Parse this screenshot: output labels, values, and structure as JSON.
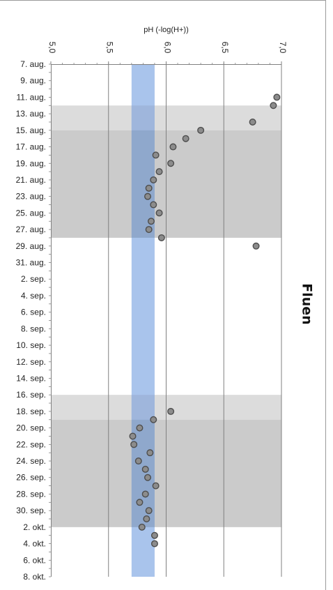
{
  "chart_data": {
    "type": "scatter",
    "title": "Fluen",
    "ylabel": "pH (-log(H+))",
    "value_range": [
      5.0,
      7.0
    ],
    "value_ticks": [
      "5,0",
      "5,5",
      "6,0",
      "6,5",
      "7,0"
    ],
    "date_labels": [
      "7. aug.",
      "9. aug.",
      "11. aug.",
      "13. aug.",
      "15. aug.",
      "17. aug.",
      "19. aug.",
      "21. aug.",
      "23. aug.",
      "25. aug.",
      "27. aug.",
      "29. aug.",
      "31. aug.",
      "2. sep.",
      "4. sep.",
      "6. sep.",
      "8. sep.",
      "10. sep.",
      "12. sep.",
      "14. sep.",
      "16. sep.",
      "18. sep.",
      "20. sep.",
      "22. sep.",
      "24. sep.",
      "26. sep.",
      "28. sep.",
      "30. sep.",
      "2. okt.",
      "4. okt.",
      "6. okt.",
      "8. okt."
    ],
    "date_range": [
      "2014-08-07",
      "2014-10-08"
    ],
    "target_band": [
      5.7,
      5.9
    ],
    "shaded_periods": [
      {
        "from": "2014-08-12",
        "to": "2014-08-15",
        "shade": "light"
      },
      {
        "from": "2014-08-15",
        "to": "2014-08-28",
        "shade": "dark"
      },
      {
        "from": "2014-09-16",
        "to": "2014-09-19",
        "shade": "light"
      },
      {
        "from": "2014-09-19",
        "to": "2014-10-02",
        "shade": "dark"
      }
    ],
    "series": [
      {
        "points": [
          {
            "date": "2014-08-11",
            "value": 6.96
          },
          {
            "date": "2014-08-12",
            "value": 6.93
          },
          {
            "date": "2014-08-14",
            "value": 6.75
          },
          {
            "date": "2014-08-15",
            "value": 6.3
          },
          {
            "date": "2014-08-16",
            "value": 6.17
          },
          {
            "date": "2014-08-17",
            "value": 6.06
          },
          {
            "date": "2014-08-18",
            "value": 5.91
          },
          {
            "date": "2014-08-19",
            "value": 6.04
          },
          {
            "date": "2014-08-20",
            "value": 5.94
          },
          {
            "date": "2014-08-21",
            "value": 5.89
          },
          {
            "date": "2014-08-22",
            "value": 5.85
          },
          {
            "date": "2014-08-23",
            "value": 5.84
          },
          {
            "date": "2014-08-24",
            "value": 5.89
          },
          {
            "date": "2014-08-25",
            "value": 5.94
          },
          {
            "date": "2014-08-26",
            "value": 5.87
          },
          {
            "date": "2014-08-27",
            "value": 5.85
          },
          {
            "date": "2014-08-28",
            "value": 5.96
          },
          {
            "date": "2014-08-29",
            "value": 6.78
          },
          {
            "date": "2014-09-18",
            "value": 6.04
          },
          {
            "date": "2014-09-19",
            "value": 5.89
          },
          {
            "date": "2014-09-20",
            "value": 5.77
          },
          {
            "date": "2014-09-21",
            "value": 5.71
          },
          {
            "date": "2014-09-22",
            "value": 5.72
          },
          {
            "date": "2014-09-23",
            "value": 5.86
          },
          {
            "date": "2014-09-24",
            "value": 5.76
          },
          {
            "date": "2014-09-25",
            "value": 5.82
          },
          {
            "date": "2014-09-26",
            "value": 5.84
          },
          {
            "date": "2014-09-27",
            "value": 5.91
          },
          {
            "date": "2014-09-28",
            "value": 5.82
          },
          {
            "date": "2014-09-29",
            "value": 5.77
          },
          {
            "date": "2014-09-30",
            "value": 5.85
          },
          {
            "date": "2014-10-01",
            "value": 5.83
          },
          {
            "date": "2014-10-02",
            "value": 5.79
          },
          {
            "date": "2014-10-03",
            "value": 5.9
          },
          {
            "date": "2014-10-04",
            "value": 5.9
          }
        ],
        "color": "#8c8c8c"
      }
    ],
    "colors": {
      "band": "#a9c4ec",
      "band_overlap": "#8fa8cc",
      "shade_light": "#dcdcdc",
      "shade_dark": "#cbcbcb",
      "grid": "#808080",
      "marker_fill": "#8c8c8c",
      "marker_stroke": "#4d4d4d"
    },
    "grid": true
  }
}
